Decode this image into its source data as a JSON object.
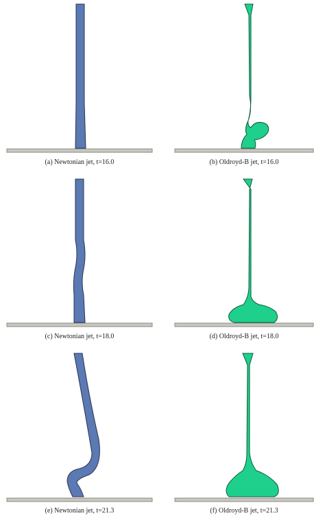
{
  "panels": [
    {
      "caption": "(a) Newtonian jet, t=16.0"
    },
    {
      "caption": "(b) Oldroyd-B jet, t=16.0"
    },
    {
      "caption": "(c) Newtonian jet, t=18.0"
    },
    {
      "caption": "(d) Oldroyd-B jet, t=18.0"
    },
    {
      "caption": "(e) Newtonian jet, t=21.3"
    },
    {
      "caption": "(f) Oldroyd-B jet, t=21.3"
    }
  ]
}
